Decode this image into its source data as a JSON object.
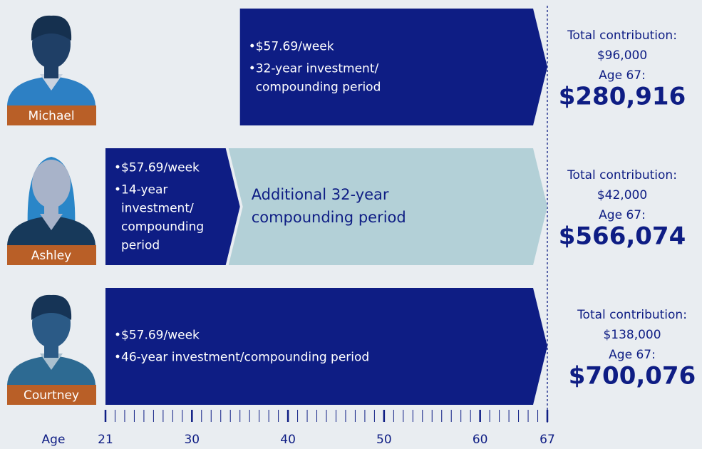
{
  "chart_data": {
    "type": "timeline",
    "x_label": "Age",
    "xlim": [
      21,
      67
    ],
    "xticks": [
      21,
      30,
      40,
      50,
      60,
      67
    ],
    "xticks_minor": [
      22,
      23,
      24,
      25,
      26,
      27,
      28,
      29,
      31,
      32,
      33,
      34,
      35,
      36,
      37,
      38,
      39,
      41,
      42,
      43,
      44,
      45,
      46,
      47,
      48,
      49,
      51,
      52,
      53,
      54,
      55,
      56,
      57,
      58,
      59,
      61,
      62,
      63,
      64,
      65,
      66
    ],
    "rows": [
      {
        "name": "Michael",
        "segments": [
          {
            "start": 35,
            "end": 67,
            "color": "#0e1d84",
            "bullets": [
              [
                "$57.69/week"
              ],
              [
                "32-year investment/",
                "compounding period"
              ]
            ]
          }
        ],
        "total_label": "Total contribution:",
        "total": "$96,000",
        "result_label": "Age 67:",
        "result": "$280,916"
      },
      {
        "name": "Ashley",
        "segments": [
          {
            "start": 21,
            "end": 35,
            "color": "#0e1d84",
            "bullets": [
              [
                "$57.69/week"
              ],
              [
                "14-year",
                "investment/",
                "compounding",
                "period"
              ]
            ]
          },
          {
            "start": 35,
            "end": 67,
            "color": "#b3d0d7",
            "lines": [
              "Additional 32-year",
              "compounding period"
            ]
          }
        ],
        "total_label": "Total contribution:",
        "total": "$42,000",
        "result_label": "Age 67:",
        "result": "$566,074"
      },
      {
        "name": "Courtney",
        "segments": [
          {
            "start": 21,
            "end": 67,
            "color": "#0e1d84",
            "bullets": [
              [
                "$57.69/week"
              ],
              [
                "46-year investment/compounding period"
              ]
            ]
          }
        ],
        "total_label": "Total contribution:",
        "total": "$138,000",
        "result_label": "Age 67:",
        "result": "$700,076"
      }
    ]
  }
}
